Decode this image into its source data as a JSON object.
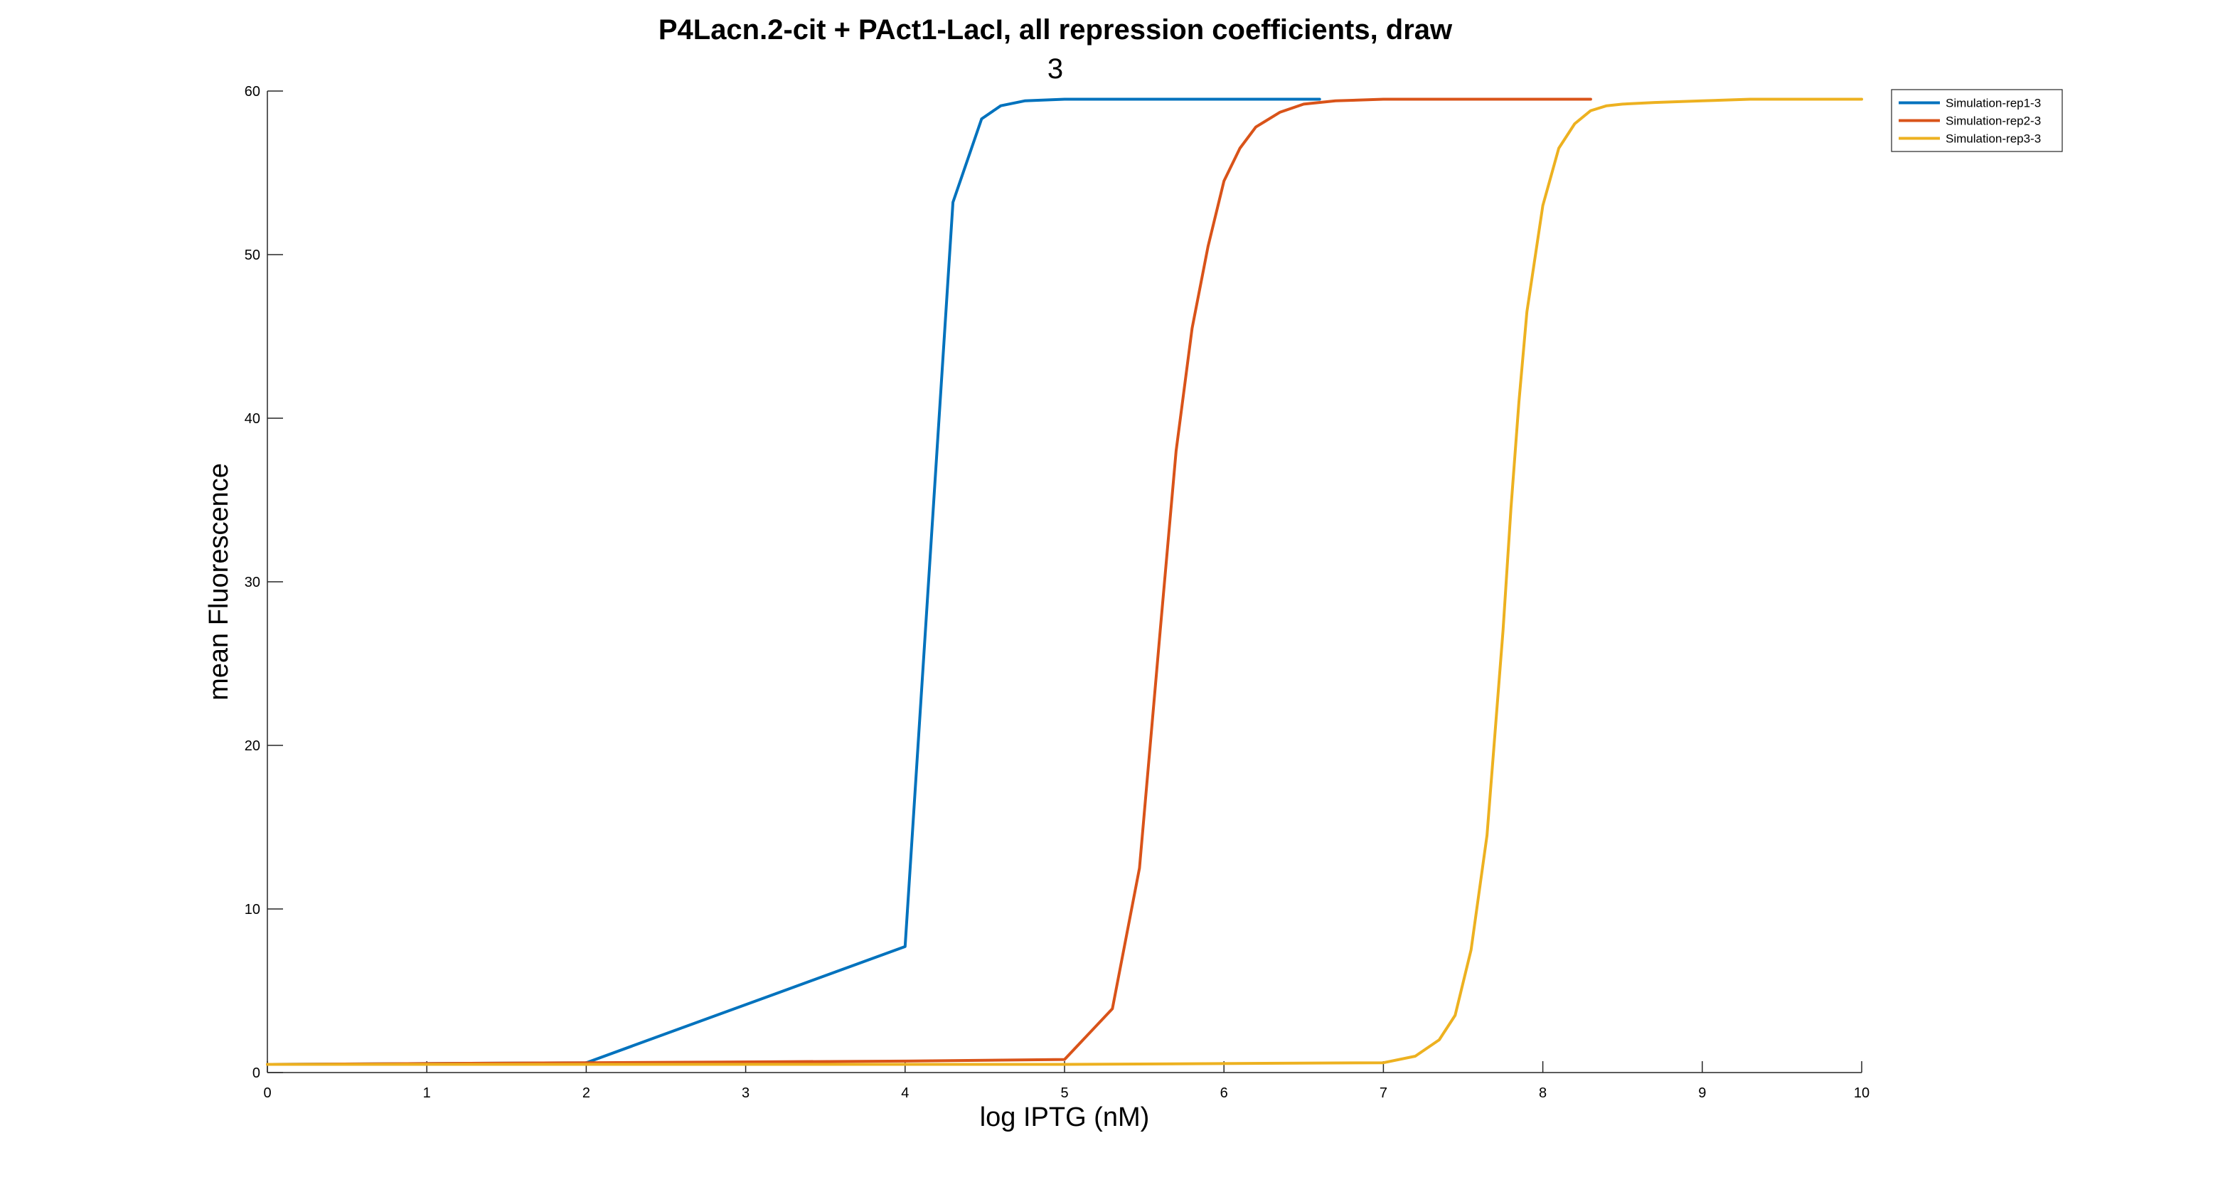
{
  "chart_data": {
    "type": "line",
    "title": "P4Lacn.2-cit + PAct1-LacI, all repression coefficients, draw",
    "title_line2": "3",
    "xlabel": "log IPTG (nM)",
    "ylabel": "mean Fluorescence",
    "xlim": [
      0,
      10
    ],
    "ylim": [
      0,
      60
    ],
    "xticks": [
      0,
      1,
      2,
      3,
      4,
      5,
      6,
      7,
      8,
      9,
      10
    ],
    "yticks": [
      0,
      10,
      20,
      30,
      40,
      50,
      60
    ],
    "xtick_labels": [
      "0",
      "1",
      "2",
      "3",
      "4",
      "5",
      "6",
      "7",
      "8",
      "9",
      "10"
    ],
    "ytick_labels": [
      "0",
      "10",
      "20",
      "30",
      "40",
      "50",
      "60"
    ],
    "grid": false,
    "legend_position": "top-right",
    "series": [
      {
        "name": "Simulation-rep1-3",
        "color": "#0072BD",
        "x": [
          0,
          2.0,
          4.0,
          4.3,
          4.48,
          4.6,
          4.75,
          5.0,
          6.0,
          6.6
        ],
        "y": [
          0.5,
          0.6,
          7.7,
          53.2,
          58.3,
          59.1,
          59.4,
          59.5,
          59.5,
          59.5
        ]
      },
      {
        "name": "Simulation-rep2-3",
        "color": "#D95319",
        "x": [
          0,
          2.0,
          4.0,
          5.0,
          5.3,
          5.47,
          5.6,
          5.7,
          5.8,
          5.9,
          6.0,
          6.1,
          6.2,
          6.35,
          6.5,
          6.7,
          7.0,
          8.3
        ],
        "y": [
          0.5,
          0.6,
          0.7,
          0.8,
          3.9,
          12.5,
          27.0,
          38.0,
          45.5,
          50.5,
          54.5,
          56.5,
          57.8,
          58.7,
          59.2,
          59.4,
          59.5,
          59.5
        ],
        "y_note": ""
      },
      {
        "name": "Simulation-rep3-3",
        "color": "#EDB120",
        "x": [
          0,
          5.0,
          7.0,
          7.2,
          7.35,
          7.45,
          7.55,
          7.65,
          7.75,
          7.8,
          7.85,
          7.9,
          8.0,
          8.1,
          8.2,
          8.3,
          8.4,
          8.5,
          8.7,
          9.0,
          9.3,
          10.0
        ],
        "y": [
          0.5,
          0.5,
          0.6,
          1.0,
          2.0,
          3.5,
          7.5,
          14.5,
          27.0,
          34.5,
          41.0,
          46.5,
          53.0,
          56.5,
          58.0,
          58.8,
          59.1,
          59.2,
          59.3,
          59.4,
          59.5,
          59.5
        ]
      }
    ]
  }
}
